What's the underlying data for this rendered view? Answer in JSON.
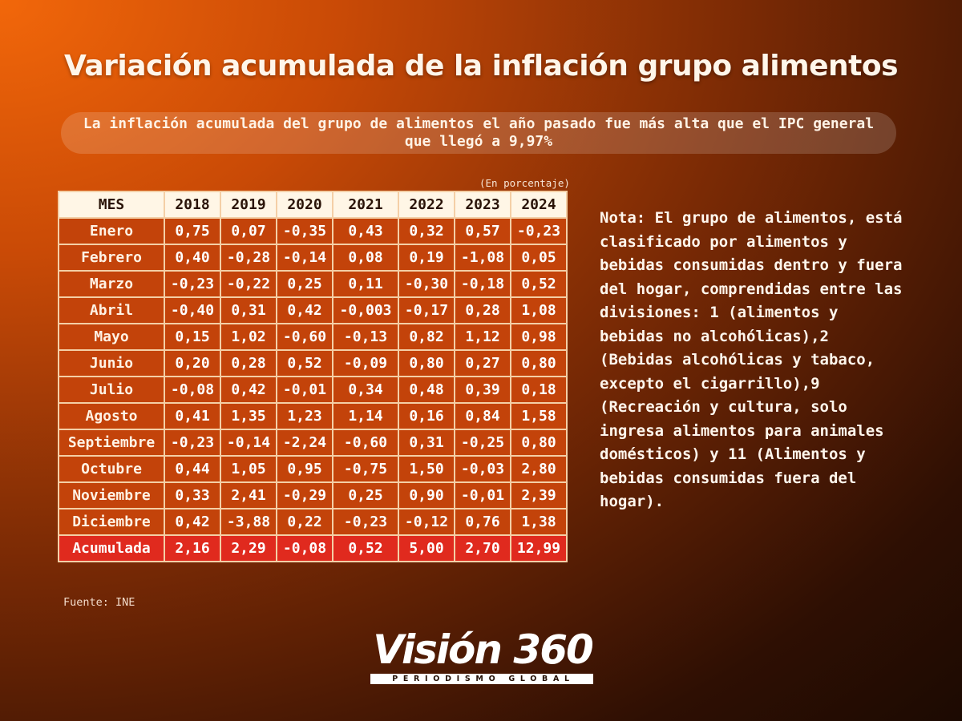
{
  "title": "Variación acumulada de la inflación grupo alimentos",
  "subtitle": "La inflación acumulada del grupo de  alimentos el año pasado fue más alta que el IPC general que llegó a 9,97%",
  "unit_note": "(En porcentaje)",
  "note": "Nota: El grupo de alimentos, está clasificado por alimentos y bebidas consumidas dentro y fuera del hogar, comprendidas entre las divisiones: 1 (alimentos y bebidas no alcohólicas),2 (Bebidas alcohólicas y tabaco, excepto el cigarrillo),9 (Recreación y cultura, solo ingresa alimentos para animales domésticos) y 11 (Alimentos y bebidas consumidas fuera del hogar).",
  "source": "Fuente: INE",
  "logo": {
    "name": "Visión 360",
    "tagline": "PERIODISMO GLOBAL"
  },
  "colors": {
    "header_bg": "#fff6e6",
    "cell_bg": "#c3430a",
    "total_bg": "#e02a1e",
    "border": "#f4cfa6"
  },
  "chart_data": {
    "type": "table",
    "title": "Variación acumulada de la inflación grupo alimentos",
    "header_label": "MES",
    "columns": [
      "2018",
      "2019",
      "2020",
      "2021",
      "2022",
      "2023",
      "2024"
    ],
    "rows": [
      {
        "label": "Enero",
        "values": [
          "0,75",
          "0,07",
          "-0,35",
          "0,43",
          "0,32",
          "0,57",
          "-0,23"
        ]
      },
      {
        "label": "Febrero",
        "values": [
          "0,40",
          "-0,28",
          "-0,14",
          "0,08",
          "0,19",
          "-1,08",
          "0,05"
        ]
      },
      {
        "label": "Marzo",
        "values": [
          "-0,23",
          "-0,22",
          "0,25",
          "0,11",
          "-0,30",
          "-0,18",
          "0,52"
        ]
      },
      {
        "label": "Abril",
        "values": [
          "-0,40",
          "0,31",
          "0,42",
          "-0,003",
          "-0,17",
          "0,28",
          "1,08"
        ]
      },
      {
        "label": "Mayo",
        "values": [
          "0,15",
          "1,02",
          "-0,60",
          "-0,13",
          "0,82",
          "1,12",
          "0,98"
        ]
      },
      {
        "label": "Junio",
        "values": [
          "0,20",
          "0,28",
          "0,52",
          "-0,09",
          "0,80",
          "0,27",
          "0,80"
        ]
      },
      {
        "label": "Julio",
        "values": [
          "-0,08",
          "0,42",
          "-0,01",
          "0,34",
          "0,48",
          "0,39",
          "0,18"
        ]
      },
      {
        "label": "Agosto",
        "values": [
          "0,41",
          "1,35",
          "1,23",
          "1,14",
          "0,16",
          "0,84",
          "1,58"
        ]
      },
      {
        "label": "Septiembre",
        "values": [
          "-0,23",
          "-0,14",
          "-2,24",
          "-0,60",
          "0,31",
          "-0,25",
          "0,80"
        ]
      },
      {
        "label": "Octubre",
        "values": [
          "0,44",
          "1,05",
          "0,95",
          "-0,75",
          "1,50",
          "-0,03",
          "2,80"
        ]
      },
      {
        "label": "Noviembre",
        "values": [
          "0,33",
          "2,41",
          "-0,29",
          "0,25",
          "0,90",
          "-0,01",
          "2,39"
        ]
      },
      {
        "label": "Diciembre",
        "values": [
          "0,42",
          "-3,88",
          "0,22",
          "-0,23",
          "-0,12",
          "0,76",
          "1,38"
        ]
      }
    ],
    "total": {
      "label": "Acumulada",
      "values": [
        "2,16",
        "2,29",
        "-0,08",
        "0,52",
        "5,00",
        "2,70",
        "12,99"
      ]
    }
  }
}
